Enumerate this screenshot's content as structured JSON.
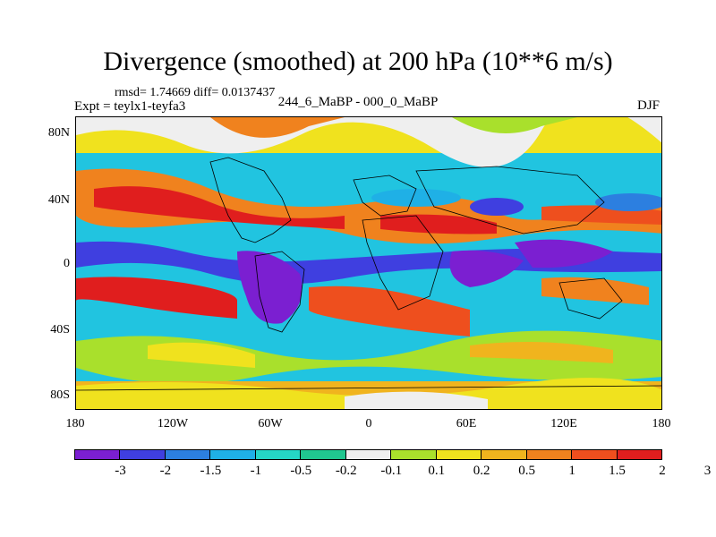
{
  "title": "Divergence (smoothed) at 200 hPa (10**6 m/s)",
  "stats": "rmsd= 1.74669 diff= 0.0137437",
  "expt_label": "Expt = teylx1-teyfa3",
  "expt_id": "244_6_MaBP - 000_0_MaBP",
  "season": "DJF",
  "map": {
    "lat_labels": [
      "80N",
      "40N",
      "0",
      "40S",
      "80S"
    ],
    "lon_labels": [
      "180",
      "120W",
      "60W",
      "0",
      "60E",
      "120E",
      "180"
    ]
  },
  "colorbar": {
    "colors": [
      "#7b1fd1",
      "#3f3fe0",
      "#2c7fe0",
      "#1fb0e6",
      "#25d6c6",
      "#20c78f",
      "#efefef",
      "#a9e02c",
      "#f0e21e",
      "#f0b41e",
      "#f0821e",
      "#ee4f1e",
      "#e01e1e"
    ],
    "labels": [
      "-3",
      "-2",
      "-1.5",
      "-1",
      "-0.5",
      "-0.2",
      "-0.1",
      "0.1",
      "0.2",
      "0.5",
      "1",
      "1.5",
      "2",
      "3"
    ]
  }
}
